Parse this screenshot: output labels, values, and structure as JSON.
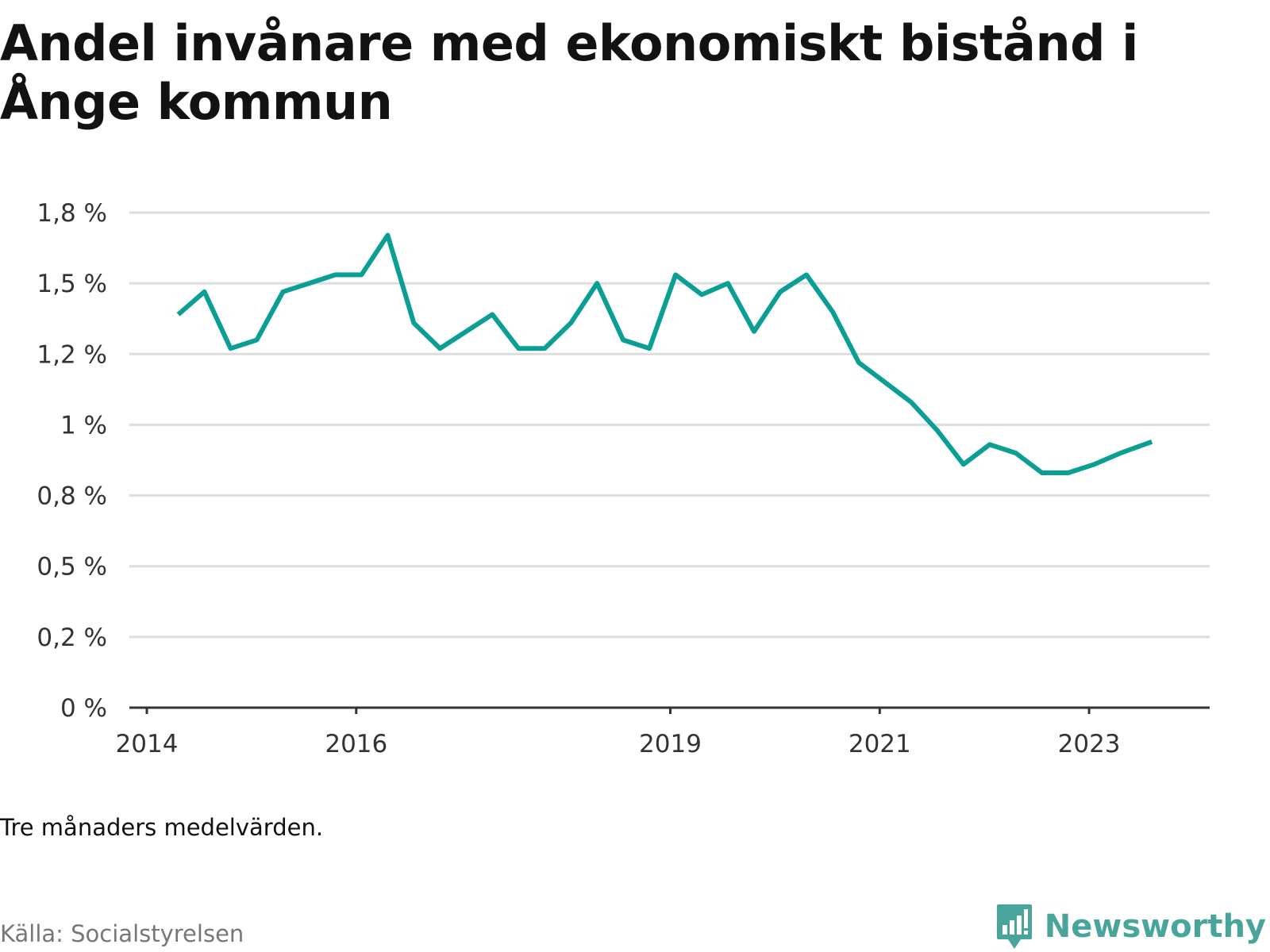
{
  "chart_data": {
    "type": "line",
    "title": "Andel invånare med ekonomiskt bistånd i Ånge kommun",
    "note": "Tre månaders medelvärden.",
    "source": "Källa: Socialstyrelsen",
    "xlabel": "",
    "ylabel": "",
    "x_tick_labels": [
      "2014",
      "2016",
      "2019",
      "2021",
      "2023"
    ],
    "x_tick_values": [
      2014.0,
      2016.0,
      2019.0,
      2021.0,
      2023.0
    ],
    "xlim": [
      2014.0,
      2024.05
    ],
    "y_tick_labels": [
      "0 %",
      "0,2 %",
      "0,5 %",
      "0,8 %",
      "1 %",
      "1,2 %",
      "1,5 %",
      "1,8 %"
    ],
    "y_tick_values": [
      0,
      0.25,
      0.5,
      0.75,
      1.0,
      1.25,
      1.5,
      1.75
    ],
    "ylim": [
      0,
      1.75
    ],
    "grid": true,
    "line_color": "#0a9e94",
    "series": [
      {
        "values": [
          [
            2014.3,
            1.39
          ],
          [
            2014.55,
            1.47
          ],
          [
            2014.8,
            1.27
          ],
          [
            2015.05,
            1.3
          ],
          [
            2015.3,
            1.47
          ],
          [
            2015.55,
            1.5
          ],
          [
            2015.8,
            1.53
          ],
          [
            2016.05,
            1.53
          ],
          [
            2016.3,
            1.67
          ],
          [
            2016.55,
            1.36
          ],
          [
            2016.8,
            1.27
          ],
          [
            2017.05,
            1.33
          ],
          [
            2017.3,
            1.39
          ],
          [
            2017.55,
            1.27
          ],
          [
            2017.8,
            1.27
          ],
          [
            2018.05,
            1.36
          ],
          [
            2018.3,
            1.5
          ],
          [
            2018.55,
            1.3
          ],
          [
            2018.8,
            1.27
          ],
          [
            2019.05,
            1.53
          ],
          [
            2019.3,
            1.46
          ],
          [
            2019.55,
            1.5
          ],
          [
            2019.8,
            1.33
          ],
          [
            2020.05,
            1.47
          ],
          [
            2020.3,
            1.53
          ],
          [
            2020.55,
            1.4
          ],
          [
            2020.8,
            1.22
          ],
          [
            2021.05,
            1.15
          ],
          [
            2021.3,
            1.08
          ],
          [
            2021.55,
            0.98
          ],
          [
            2021.8,
            0.86
          ],
          [
            2022.05,
            0.93
          ],
          [
            2022.3,
            0.9
          ],
          [
            2022.55,
            0.83
          ],
          [
            2022.8,
            0.83
          ],
          [
            2023.05,
            0.86
          ],
          [
            2023.3,
            0.9
          ],
          [
            2023.6,
            0.94
          ]
        ]
      }
    ]
  },
  "brand": {
    "name": "Newsworthy",
    "color": "#49a59c",
    "icon": "chart-badge-icon"
  }
}
